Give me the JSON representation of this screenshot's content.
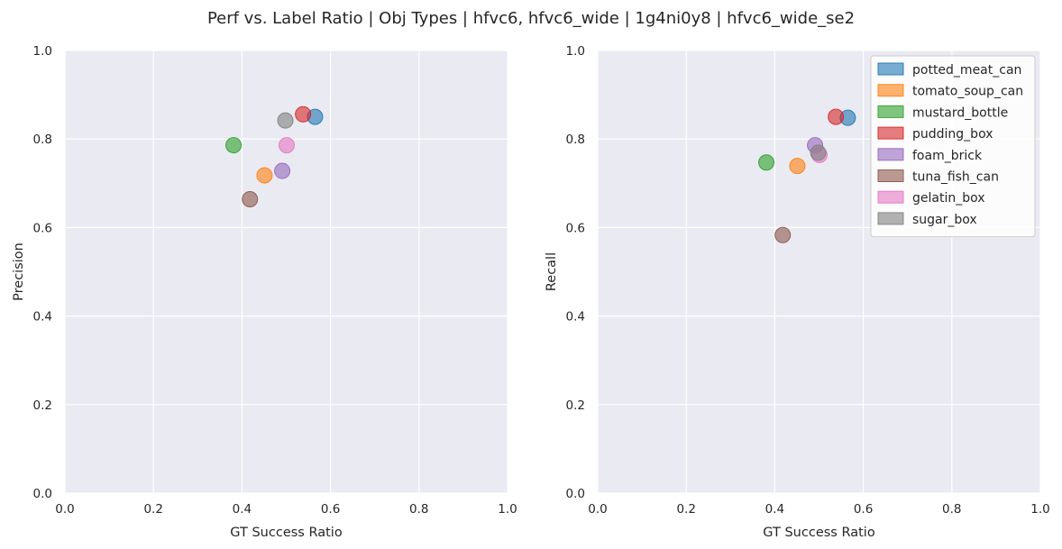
{
  "title": "Perf vs. Label Ratio | Obj Types | hfvc6, hfvc6_wide | 1g4ni0y8 | hfvc6_wide_se2",
  "colors": {
    "background": "#eaeaf2",
    "grid": "#ffffff",
    "legend_bg": "#ffffff",
    "legend_border": "#cccccc"
  },
  "chart_data": [
    {
      "type": "scatter",
      "xlabel": "GT Success Ratio",
      "ylabel": "Precision",
      "xlim": [
        0,
        1
      ],
      "ylim": [
        0,
        1
      ],
      "xticks": [
        "0.0",
        "0.2",
        "0.4",
        "0.6",
        "0.8",
        "1.0"
      ],
      "yticks": [
        "0.0",
        "0.2",
        "0.4",
        "0.6",
        "0.8",
        "1.0"
      ],
      "grid": true,
      "legend": false,
      "series": [
        {
          "name": "potted_meat_can",
          "color": "#1f77b4",
          "x": 0.565,
          "y": 0.85
        },
        {
          "name": "tomato_soup_can",
          "color": "#ff7f0e",
          "x": 0.451,
          "y": 0.718
        },
        {
          "name": "mustard_bottle",
          "color": "#2ca02c",
          "x": 0.381,
          "y": 0.786
        },
        {
          "name": "pudding_box",
          "color": "#d62728",
          "x": 0.538,
          "y": 0.856
        },
        {
          "name": "foam_brick",
          "color": "#9467bd",
          "x": 0.491,
          "y": 0.728
        },
        {
          "name": "tuna_fish_can",
          "color": "#8c564b",
          "x": 0.418,
          "y": 0.664
        },
        {
          "name": "gelatin_box",
          "color": "#e377c2",
          "x": 0.501,
          "y": 0.786
        },
        {
          "name": "sugar_box",
          "color": "#7f7f7f",
          "x": 0.498,
          "y": 0.842
        }
      ]
    },
    {
      "type": "scatter",
      "xlabel": "GT Success Ratio",
      "ylabel": "Recall",
      "xlim": [
        0,
        1
      ],
      "ylim": [
        0,
        1
      ],
      "xticks": [
        "0.0",
        "0.2",
        "0.4",
        "0.6",
        "0.8",
        "1.0"
      ],
      "yticks": [
        "0.0",
        "0.2",
        "0.4",
        "0.6",
        "0.8",
        "1.0"
      ],
      "grid": true,
      "legend": "top-right",
      "series": [
        {
          "name": "potted_meat_can",
          "color": "#1f77b4",
          "x": 0.565,
          "y": 0.848
        },
        {
          "name": "tomato_soup_can",
          "color": "#ff7f0e",
          "x": 0.451,
          "y": 0.739
        },
        {
          "name": "mustard_bottle",
          "color": "#2ca02c",
          "x": 0.381,
          "y": 0.747
        },
        {
          "name": "pudding_box",
          "color": "#d62728",
          "x": 0.538,
          "y": 0.85
        },
        {
          "name": "foam_brick",
          "color": "#9467bd",
          "x": 0.491,
          "y": 0.786
        },
        {
          "name": "tuna_fish_can",
          "color": "#8c564b",
          "x": 0.418,
          "y": 0.583
        },
        {
          "name": "gelatin_box",
          "color": "#e377c2",
          "x": 0.501,
          "y": 0.764
        },
        {
          "name": "sugar_box",
          "color": "#7f7f7f",
          "x": 0.498,
          "y": 0.769
        }
      ]
    }
  ]
}
